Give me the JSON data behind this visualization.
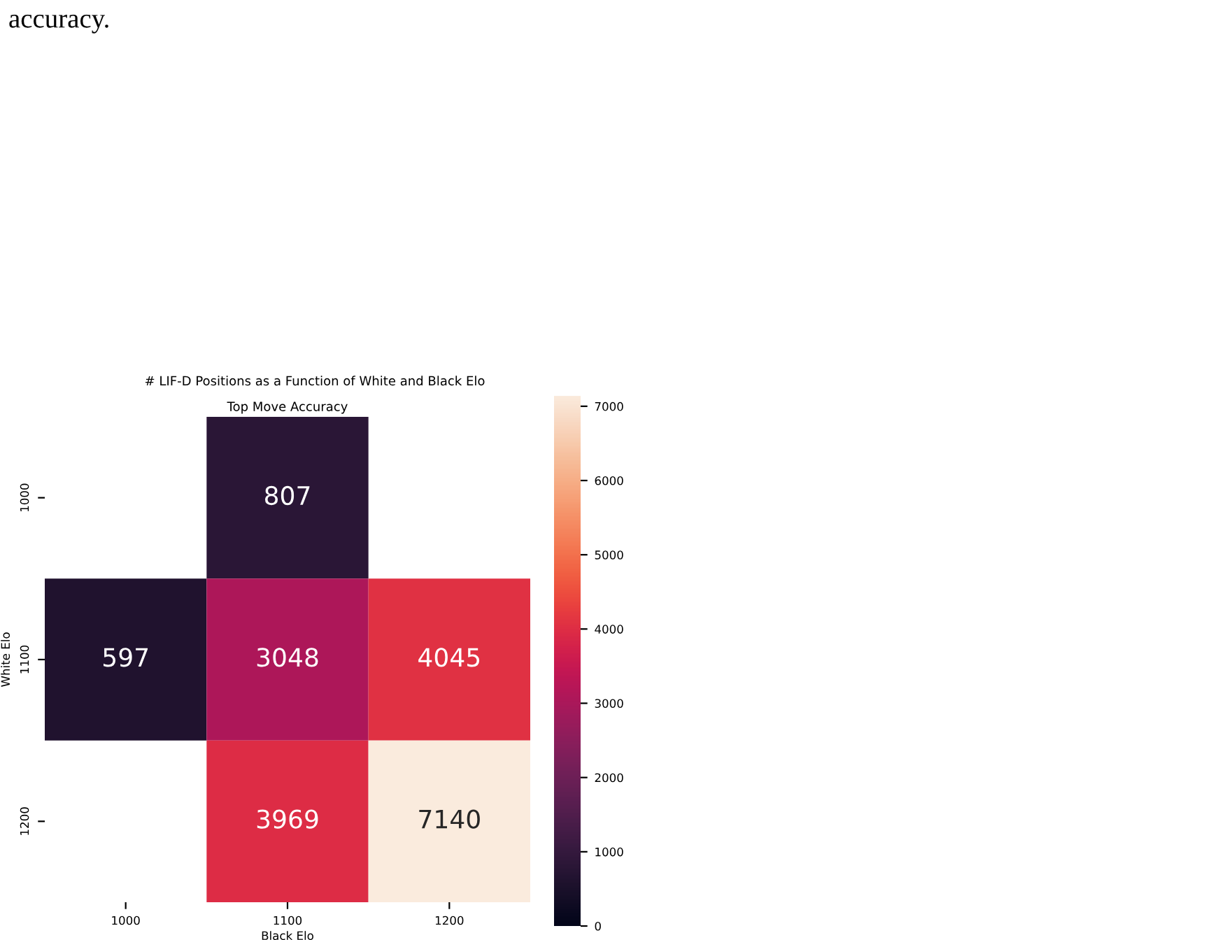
{
  "chart_data": {
    "type": "heatmap",
    "title": "# LIF-D Positions as a Function of White and Black Elo",
    "subtitle": "Top Move Accuracy",
    "xlabel": "Black Elo",
    "ylabel": "White Elo",
    "categories": [
      "1000",
      "1100",
      "1200"
    ],
    "y_categories": [
      "1000",
      "1100",
      "1200"
    ],
    "cells": [
      [
        null,
        807,
        null
      ],
      [
        597,
        3048,
        4045
      ],
      [
        null,
        3969,
        7140
      ]
    ],
    "clim": [
      0,
      7140
    ],
    "cticks": [
      0,
      1000,
      2000,
      3000,
      4000,
      5000,
      6000,
      7000
    ],
    "data_labels": true,
    "annotations": [
      "accuracy."
    ]
  }
}
